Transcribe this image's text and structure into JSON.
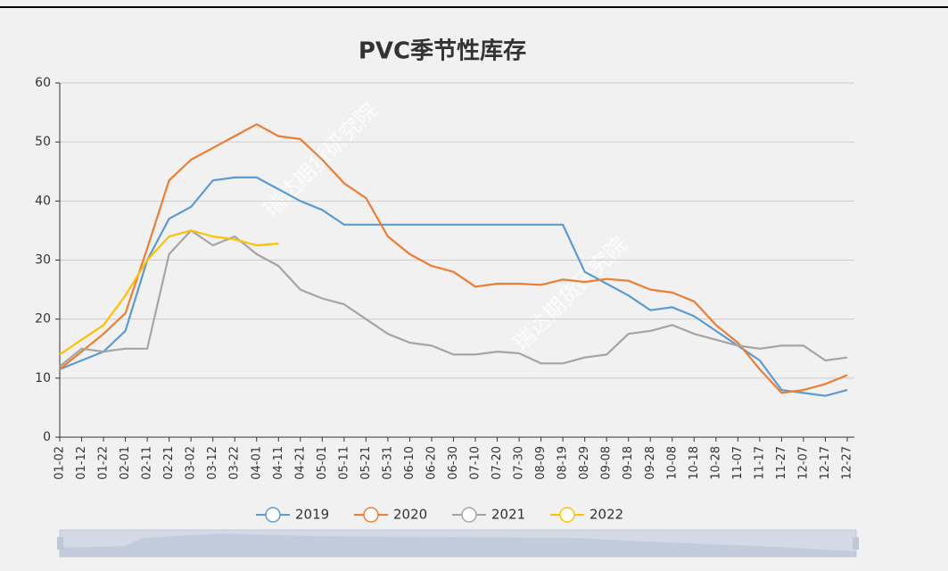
{
  "chart_data": {
    "type": "line",
    "title": "PVC季节性库存",
    "watermark": "瑞达期货研究院",
    "categories": [
      "01-02",
      "01-12",
      "01-22",
      "02-01",
      "02-11",
      "02-21",
      "03-02",
      "03-12",
      "03-22",
      "04-01",
      "04-11",
      "04-21",
      "05-01",
      "05-11",
      "05-21",
      "05-31",
      "06-10",
      "06-20",
      "06-30",
      "07-10",
      "07-20",
      "07-30",
      "08-09",
      "08-19",
      "08-29",
      "09-08",
      "09-18",
      "09-28",
      "10-08",
      "10-18",
      "10-28",
      "11-07",
      "11-17",
      "11-27",
      "12-07",
      "12-17",
      "12-27"
    ],
    "series": [
      {
        "name": "2019",
        "color": "#5b9bd5",
        "values": [
          11.5,
          13,
          14.5,
          18,
          30,
          37,
          39,
          43.5,
          44,
          44,
          42,
          40,
          38.5,
          36,
          36,
          36,
          36,
          36,
          36,
          36,
          36,
          36,
          36,
          36,
          28,
          26,
          24,
          21.5,
          22,
          20.5,
          18,
          15.5,
          13,
          8,
          7.5,
          7,
          8
        ]
      },
      {
        "name": "2020",
        "color": "#ed7d31",
        "values": [
          11.5,
          14.5,
          17.5,
          21,
          32,
          43.5,
          47,
          49,
          51,
          53,
          51,
          50.5,
          47,
          43,
          40.5,
          34,
          31,
          29,
          28,
          25.5,
          26,
          26,
          25.8,
          26.7,
          26.3,
          26.8,
          26.5,
          25,
          24.5,
          23,
          19,
          16,
          11.5,
          7.5,
          8,
          9,
          10.5
        ]
      },
      {
        "name": "2021",
        "color": "#a5a5a5",
        "values": [
          12,
          15,
          14.5,
          15,
          15,
          31,
          35,
          32.5,
          34,
          31,
          29,
          25,
          23.5,
          22.5,
          20,
          17.5,
          16,
          15.5,
          14,
          14,
          14.5,
          14.2,
          12.5,
          12.5,
          13.5,
          14,
          17.5,
          18,
          19,
          17.5,
          16.5,
          15.5,
          15,
          15.5,
          15.5,
          13,
          13.5
        ]
      },
      {
        "name": "2022",
        "color": "#ffc000",
        "values": [
          14,
          16.5,
          19,
          24,
          30,
          34,
          35,
          34,
          33.5,
          32.5,
          32.8,
          null,
          null,
          null,
          null,
          null,
          null,
          null,
          null,
          null,
          null,
          null,
          null,
          null,
          null,
          null,
          null,
          null,
          null,
          null,
          null,
          null,
          null,
          null,
          null,
          null,
          null
        ]
      }
    ],
    "ylim": [
      0,
      60
    ],
    "yticks": [
      0,
      10,
      20,
      30,
      40,
      50,
      60
    ],
    "grid": true
  }
}
